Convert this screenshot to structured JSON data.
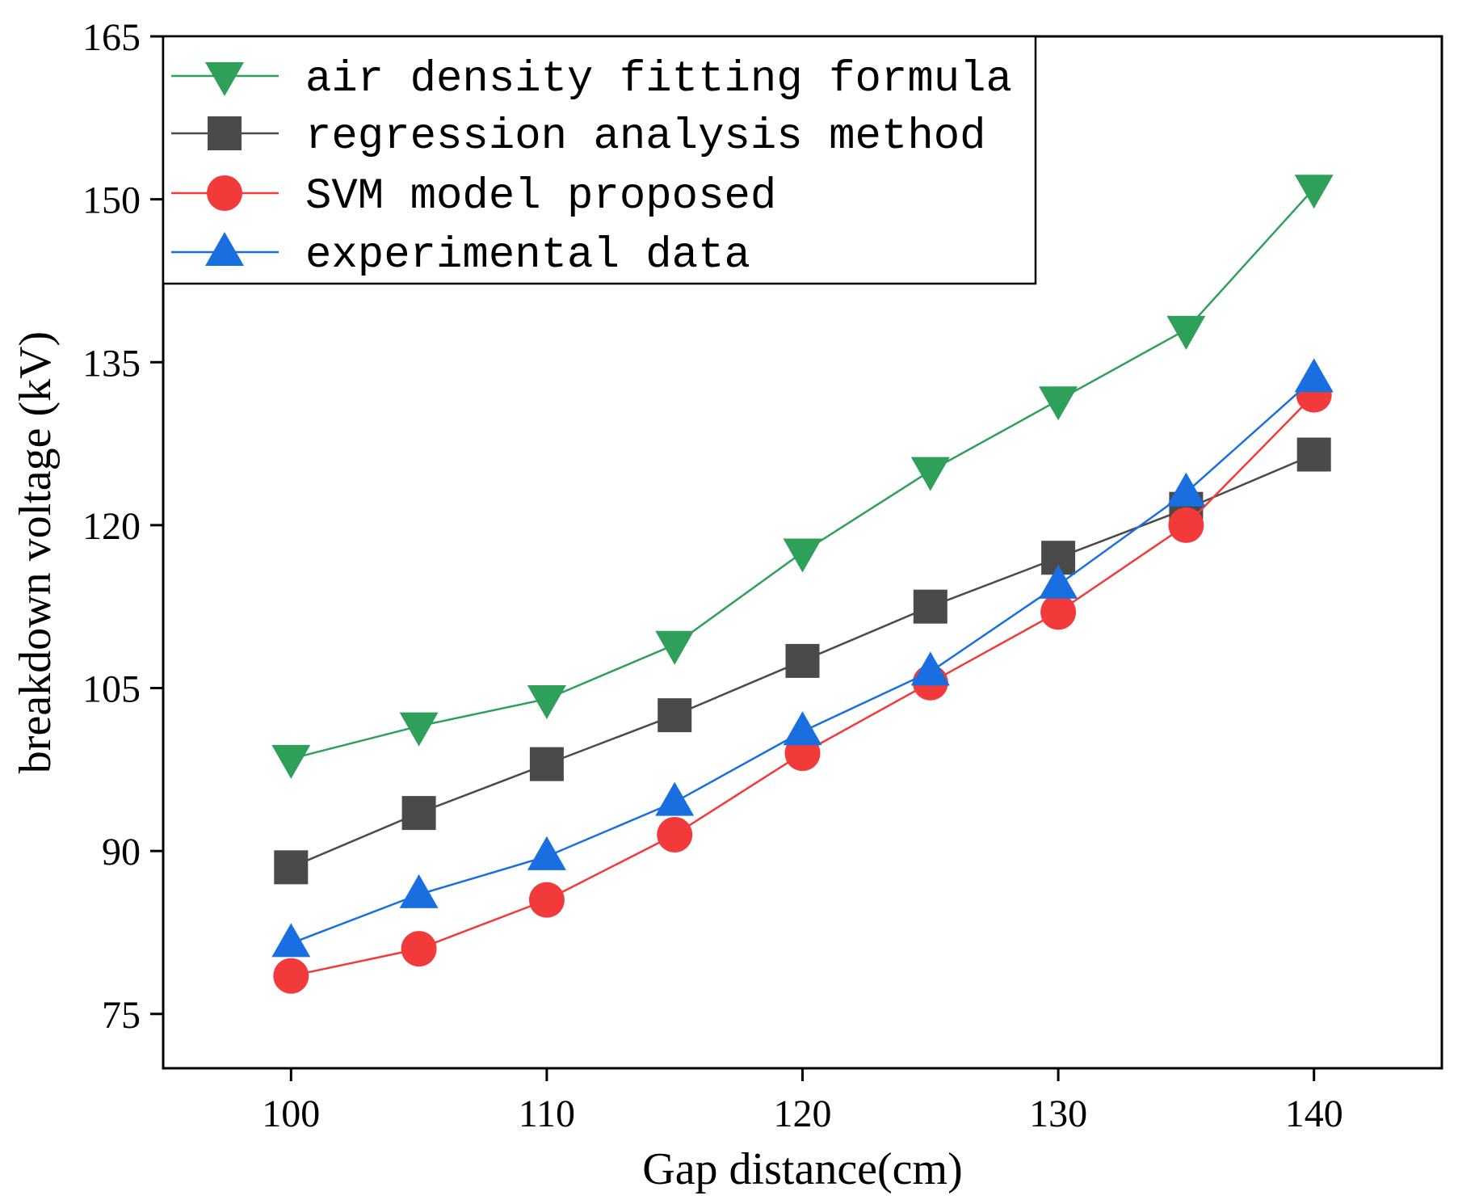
{
  "chart_data": {
    "type": "line",
    "title": "",
    "xlabel": "Gap distance(cm)",
    "ylabel": "breakdown voltage (kV)",
    "xlim": [
      95,
      145
    ],
    "ylim": [
      70,
      165
    ],
    "xticks": [
      100,
      110,
      120,
      130,
      140
    ],
    "yticks": [
      75,
      90,
      105,
      120,
      135,
      150,
      165
    ],
    "x": [
      100,
      105,
      110,
      115,
      120,
      125,
      130,
      135,
      140
    ],
    "legend_position": "top-left",
    "series": [
      {
        "name": "air density fitting formula",
        "marker": "triangle-down",
        "color": "#2ea05a",
        "values": [
          98.5,
          101.5,
          104,
          109,
          117.5,
          125,
          131.5,
          138,
          151
        ]
      },
      {
        "name": "regression analysis method",
        "marker": "square",
        "color": "#4a4a4a",
        "values": [
          88.5,
          93.5,
          98,
          102.5,
          107.5,
          112.5,
          117,
          121.5,
          126.5
        ]
      },
      {
        "name": "SVM model proposed",
        "marker": "circle",
        "color": "#f23a3a",
        "values": [
          78.5,
          81,
          85.5,
          91.5,
          99,
          105.5,
          112,
          120,
          132
        ]
      },
      {
        "name": "experimental data",
        "marker": "triangle-up",
        "color": "#1a6fe0",
        "values": [
          81.5,
          86,
          89.5,
          94.5,
          101,
          106.5,
          114.5,
          123,
          133.5
        ]
      }
    ]
  }
}
